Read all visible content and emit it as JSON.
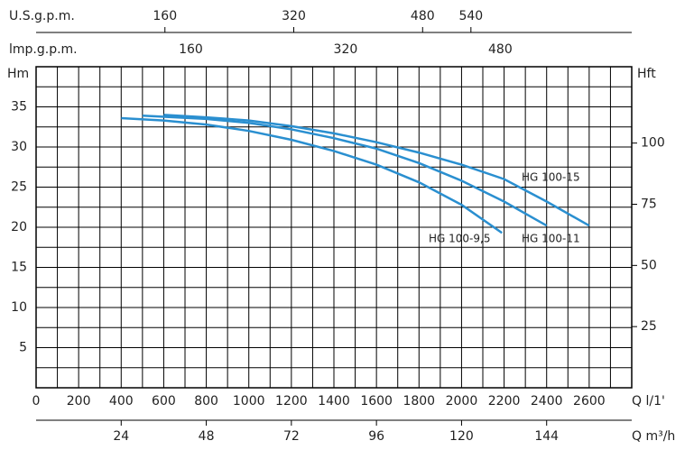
{
  "chart_data": {
    "type": "line",
    "xlabel": "Q l/1'",
    "ylabel": "Hm",
    "y2label": "Hft",
    "xlim": [
      0,
      2800
    ],
    "xticks": [
      0,
      200,
      400,
      600,
      800,
      1000,
      1200,
      1400,
      1600,
      1800,
      2000,
      2200,
      2400,
      2600
    ],
    "xgrid": [
      0,
      100,
      200,
      300,
      400,
      500,
      600,
      700,
      800,
      900,
      1000,
      1100,
      1200,
      1300,
      1400,
      1500,
      1600,
      1700,
      1800,
      1900,
      2000,
      2100,
      2200,
      2300,
      2400,
      2500,
      2600,
      2700,
      2800
    ],
    "ylim": [
      0,
      40
    ],
    "yticks": [
      5,
      10,
      15,
      20,
      25,
      30,
      35
    ],
    "ygrid": [
      0,
      2.5,
      5,
      7.5,
      10,
      12.5,
      15,
      17.5,
      20,
      22.5,
      25,
      27.5,
      30,
      32.5,
      35,
      37.5,
      40
    ],
    "y2lim": [
      0,
      131.2
    ],
    "y2ticks": [
      25,
      50,
      75,
      100
    ],
    "top_axes": [
      {
        "label": "U.S.g.p.m.",
        "lim": [
          0,
          739.7
        ],
        "ticks": [
          160,
          320,
          480,
          540
        ]
      },
      {
        "label": "lmp.g.p.m.",
        "lim": [
          0,
          615.9
        ],
        "ticks": [
          160,
          320,
          480
        ]
      }
    ],
    "bottom_axes": [
      {
        "label": "Q m³/h",
        "lim": [
          0,
          168
        ],
        "ticks": [
          24,
          48,
          72,
          96,
          120,
          144
        ]
      }
    ],
    "series": [
      {
        "name": "HG 100-15",
        "color": "#2a8fd0",
        "x": [
          600,
          800,
          1000,
          1200,
          1400,
          1600,
          1800,
          2000,
          2200,
          2400,
          2600
        ],
        "values": [
          34,
          33.7,
          33.3,
          32.6,
          31.7,
          30.6,
          29.3,
          27.8,
          26,
          23.2,
          20.2
        ]
      },
      {
        "name": "HG 100-11",
        "color": "#2a8fd0",
        "x": [
          500,
          800,
          1000,
          1200,
          1400,
          1600,
          1800,
          2000,
          2200,
          2400
        ],
        "values": [
          33.9,
          33.5,
          33,
          32.2,
          31.1,
          29.8,
          28,
          25.8,
          23.2,
          20.2
        ]
      },
      {
        "name": "HG 100-9,5",
        "color": "#2a8fd0",
        "x": [
          400,
          600,
          800,
          1000,
          1200,
          1400,
          1600,
          1800,
          2000,
          2190
        ],
        "values": [
          33.6,
          33.3,
          32.8,
          32,
          30.9,
          29.5,
          27.8,
          25.6,
          22.8,
          19.3
        ]
      }
    ]
  }
}
